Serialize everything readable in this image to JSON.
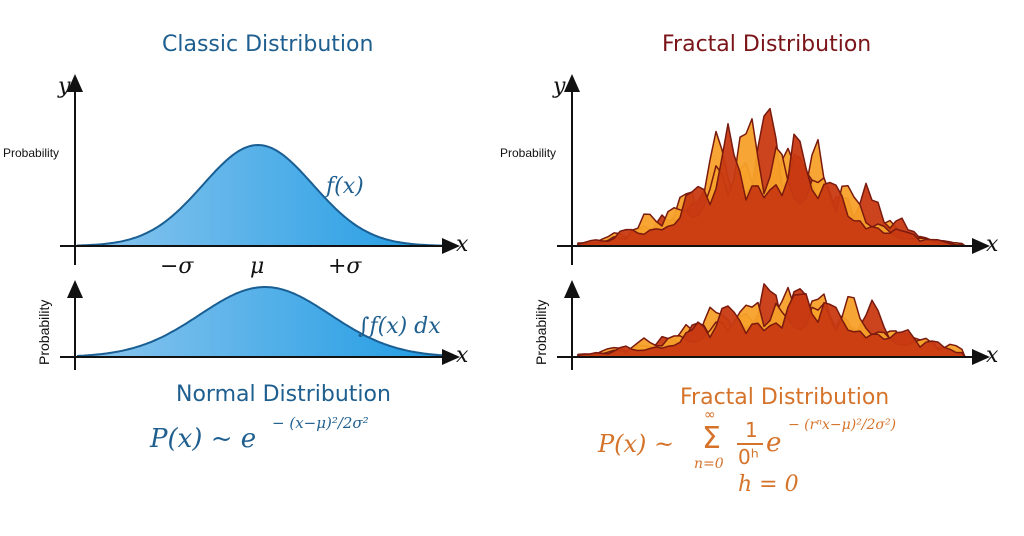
{
  "left": {
    "title": "Classic Distribution",
    "y_axis_label": "y",
    "x_axis_label": "x",
    "top_ylabel": "Probability",
    "bottom_ylabel": "Probability",
    "tick_minus_sigma": "−σ",
    "tick_mu": "μ",
    "tick_plus_sigma": "+σ",
    "curve_label": "f(x)",
    "integral_label": "∫f(x) dx",
    "subtitle": "Normal Distribution",
    "formula_lhs": "P(x) ~ e",
    "formula_exp": "− (x−μ)²/2σ²",
    "color": "#2a9be0"
  },
  "right": {
    "title": "Fractal Distribution",
    "y_axis_label": "y",
    "x_axis_label": "x",
    "top_ylabel": "Probability",
    "bottom_ylabel": "Probability",
    "subtitle": "Fractal Distribution",
    "formula_lhs": "P(x) ~",
    "sum_top": "∞",
    "sum_sign": "Σ",
    "sum_bottom": "n=0",
    "frac_num": "1",
    "frac_den": "0ʰ",
    "formula_e": "e",
    "formula_exp": "− (rⁿx−μ)²/2σ²)",
    "h_line": "h = 0",
    "colors": {
      "light": "#f7a12a",
      "dark": "#c83a12",
      "edge": "#7a1a0e"
    }
  }
}
